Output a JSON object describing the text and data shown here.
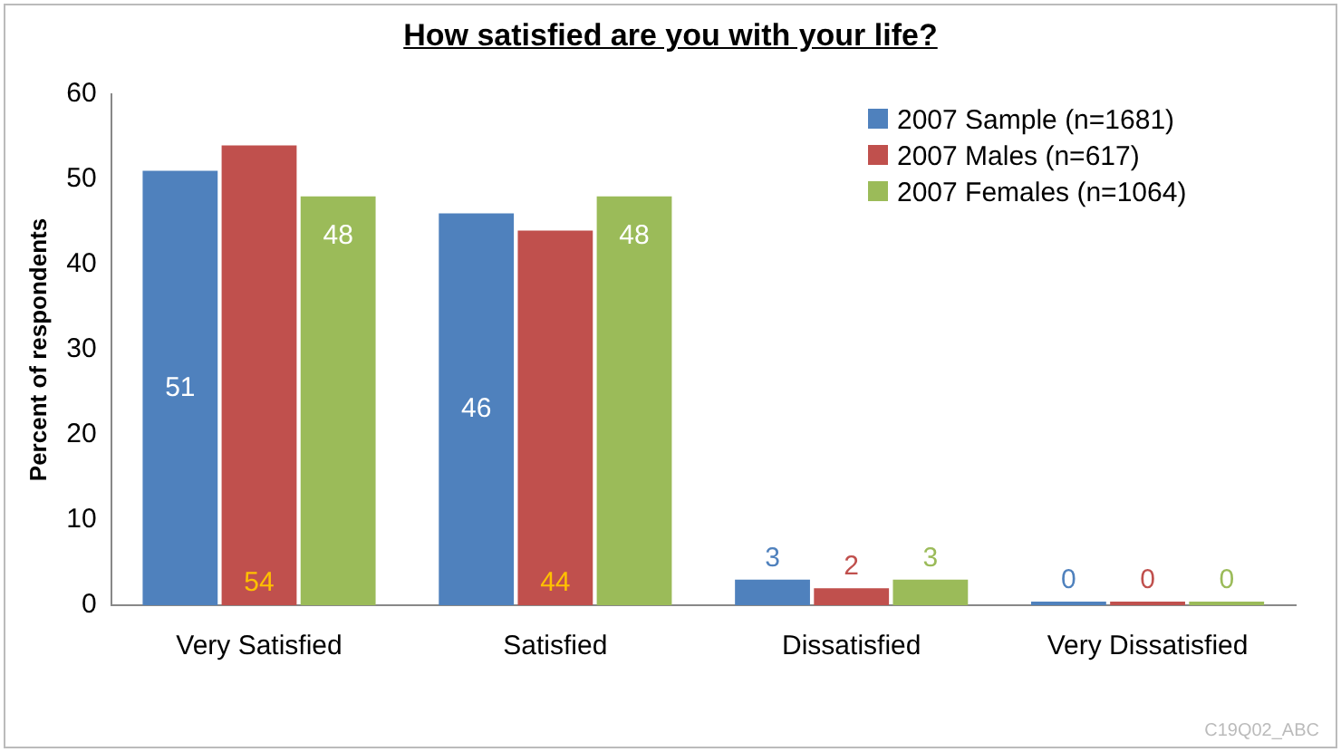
{
  "chart_data": {
    "type": "bar",
    "title": "How satisfied are you with your life?",
    "ylabel": "Percent of respondents",
    "categories": [
      "Very Satisfied",
      "Satisfied",
      "Dissatisfied",
      "Very Dissatisfied"
    ],
    "series": [
      {
        "name": "2007 Sample (n=1681)",
        "color": "#4f81bd",
        "values": [
          51,
          46,
          3,
          0
        ]
      },
      {
        "name": "2007 Males (n=617)",
        "color": "#c0504d",
        "values": [
          54,
          44,
          2,
          0
        ]
      },
      {
        "name": "2007 Females (n=1064)",
        "color": "#9bbb59",
        "values": [
          48,
          48,
          3,
          0
        ]
      }
    ],
    "ylim": [
      0,
      60
    ],
    "yticks": [
      0,
      10,
      20,
      30,
      40,
      50,
      60
    ],
    "grid": false,
    "legend": "top right",
    "data_labels": true,
    "annotations": [
      "C19Q02_ABC"
    ]
  }
}
